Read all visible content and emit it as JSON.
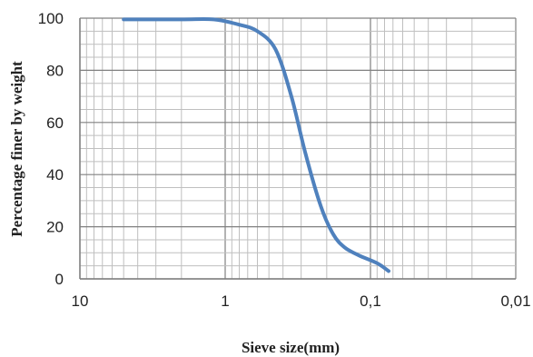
{
  "chart_data": {
    "type": "line",
    "title": "",
    "xlabel": "Sieve size(mm)",
    "ylabel": "Percentage finer by weight",
    "x_scale": "log",
    "x_reversed": true,
    "xlim": [
      10,
      0.01
    ],
    "ylim": [
      0,
      100
    ],
    "grid": true,
    "legend": "none",
    "x_ticks": [
      10,
      1,
      0.1,
      0.01
    ],
    "x_tick_labels": [
      "10",
      "1",
      "0,1",
      "0,01"
    ],
    "y_ticks": [
      0,
      20,
      40,
      60,
      80,
      100
    ],
    "y_tick_labels": [
      "0",
      "20",
      "40",
      "60",
      "80",
      "100"
    ],
    "series": [
      {
        "color": "#4f81bd",
        "x": [
          5,
          2,
          1.2,
          0.8,
          0.6,
          0.45,
          0.35,
          0.28,
          0.22,
          0.18,
          0.15,
          0.12,
          0.09,
          0.075
        ],
        "y": [
          99.5,
          99.5,
          99.5,
          97.5,
          95,
          88,
          70,
          48,
          28,
          17,
          12,
          9,
          6,
          3
        ]
      }
    ]
  }
}
